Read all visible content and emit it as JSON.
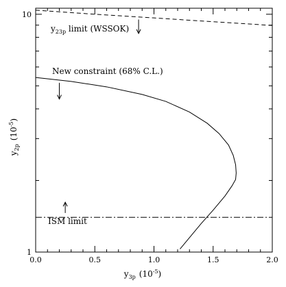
{
  "chart_data": {
    "type": "line",
    "x_axis": {
      "label_main": "y",
      "label_sub": "3p",
      "label_unit_open": "(10",
      "label_unit_exp": "-5",
      "label_unit_close": ")",
      "range": [
        0,
        2.0
      ],
      "ticks": [
        {
          "value": 0.0,
          "label": "0.0"
        },
        {
          "value": 0.5,
          "label": "0.5"
        },
        {
          "value": 1.0,
          "label": "1.0"
        },
        {
          "value": 1.5,
          "label": "1.5"
        },
        {
          "value": 2.0,
          "label": "2.0"
        }
      ]
    },
    "y_axis": {
      "label_main": "y",
      "label_sub": "2p",
      "label_unit_open": "(10",
      "label_unit_exp": "-5",
      "label_unit_close": ")",
      "scale": "log",
      "range": [
        1,
        10.6
      ],
      "ticks": [
        {
          "value": 1,
          "label": "1"
        },
        {
          "value": 10,
          "label": "10"
        }
      ],
      "minor_ticks": [
        2,
        3,
        4,
        5,
        6,
        7,
        8,
        9
      ]
    },
    "series": [
      {
        "style": "dashed",
        "x": [
          0.0,
          0.5,
          1.0,
          1.5,
          2.0
        ],
        "y": [
          10.4,
          10.0,
          9.65,
          9.3,
          8.97
        ]
      },
      {
        "style": "solid",
        "x": [
          0.0,
          0.3,
          0.6,
          0.9,
          1.1,
          1.3,
          1.45,
          1.55,
          1.63,
          1.67,
          1.69,
          1.695,
          1.69,
          1.66,
          1.6,
          1.5,
          1.4,
          1.3,
          1.22
        ],
        "y": [
          5.42,
          5.22,
          4.95,
          4.6,
          4.3,
          3.88,
          3.48,
          3.15,
          2.82,
          2.55,
          2.33,
          2.15,
          2.02,
          1.9,
          1.72,
          1.5,
          1.32,
          1.15,
          1.03
        ]
      },
      {
        "style": "dashdot",
        "x": [
          0.0,
          2.0
        ],
        "y": [
          1.4,
          1.4
        ]
      }
    ],
    "annotations": [
      {
        "label_main": "y",
        "label_sub": "23p",
        "label_rest": " limit (WSSOK)",
        "arrow": "down",
        "arrow_x": 0.87,
        "arrow_y": [
          9.5,
          8.3
        ]
      },
      {
        "label": "New constraint (68% C.L.)",
        "arrow": "down",
        "arrow_x": 0.2,
        "arrow_y": [
          5.15,
          4.4
        ]
      },
      {
        "label": "ISM limit",
        "arrow": "up",
        "arrow_x": 0.25,
        "arrow_y": [
          1.46,
          1.62
        ]
      }
    ]
  }
}
